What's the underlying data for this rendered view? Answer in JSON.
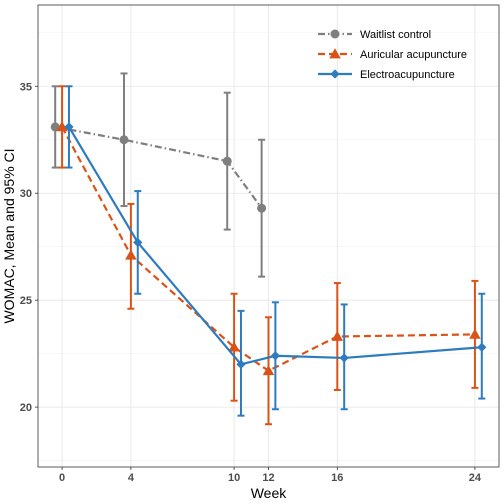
{
  "chart_data": {
    "type": "line",
    "title": "",
    "xlabel": "Week",
    "ylabel": "WOMAC, Mean and 95% CI",
    "xlim": [
      -1.4,
      25.4
    ],
    "ylim": [
      17.2,
      38.8
    ],
    "x_ticks": [
      0,
      4,
      10,
      12,
      16,
      24
    ],
    "y_ticks": [
      20,
      25,
      30,
      35
    ],
    "grid": true,
    "legend_position": "top-right",
    "series": [
      {
        "name": "Waitlist control",
        "color": "#7f7f7f",
        "line_style": "dash-dot",
        "marker": "circle",
        "offset": -0.4,
        "x": [
          0,
          4,
          10,
          12
        ],
        "y": [
          33.1,
          32.5,
          31.5,
          29.3
        ],
        "lower": [
          31.2,
          29.4,
          28.3,
          26.1
        ],
        "upper": [
          35.0,
          35.6,
          34.7,
          32.5
        ]
      },
      {
        "name": "Auricular acupuncture",
        "color": "#d95319",
        "line_style": "dashed",
        "marker": "triangle",
        "offset": 0.0,
        "x": [
          0,
          4,
          10,
          12,
          16,
          24
        ],
        "y": [
          33.1,
          27.1,
          22.8,
          21.7,
          23.3,
          23.4
        ],
        "lower": [
          31.2,
          24.6,
          20.3,
          19.2,
          20.8,
          20.9
        ],
        "upper": [
          35.0,
          29.5,
          25.3,
          24.2,
          25.8,
          25.9
        ]
      },
      {
        "name": "Electroacupuncture",
        "color": "#2e7bbd",
        "line_style": "solid",
        "marker": "diamond",
        "offset": 0.4,
        "x": [
          0,
          4,
          10,
          12,
          16,
          24
        ],
        "y": [
          33.1,
          27.7,
          22.0,
          22.4,
          22.3,
          22.8
        ],
        "lower": [
          31.2,
          25.3,
          19.6,
          19.9,
          19.9,
          20.4
        ],
        "upper": [
          35.0,
          30.1,
          24.5,
          24.9,
          24.8,
          25.3
        ]
      }
    ]
  }
}
